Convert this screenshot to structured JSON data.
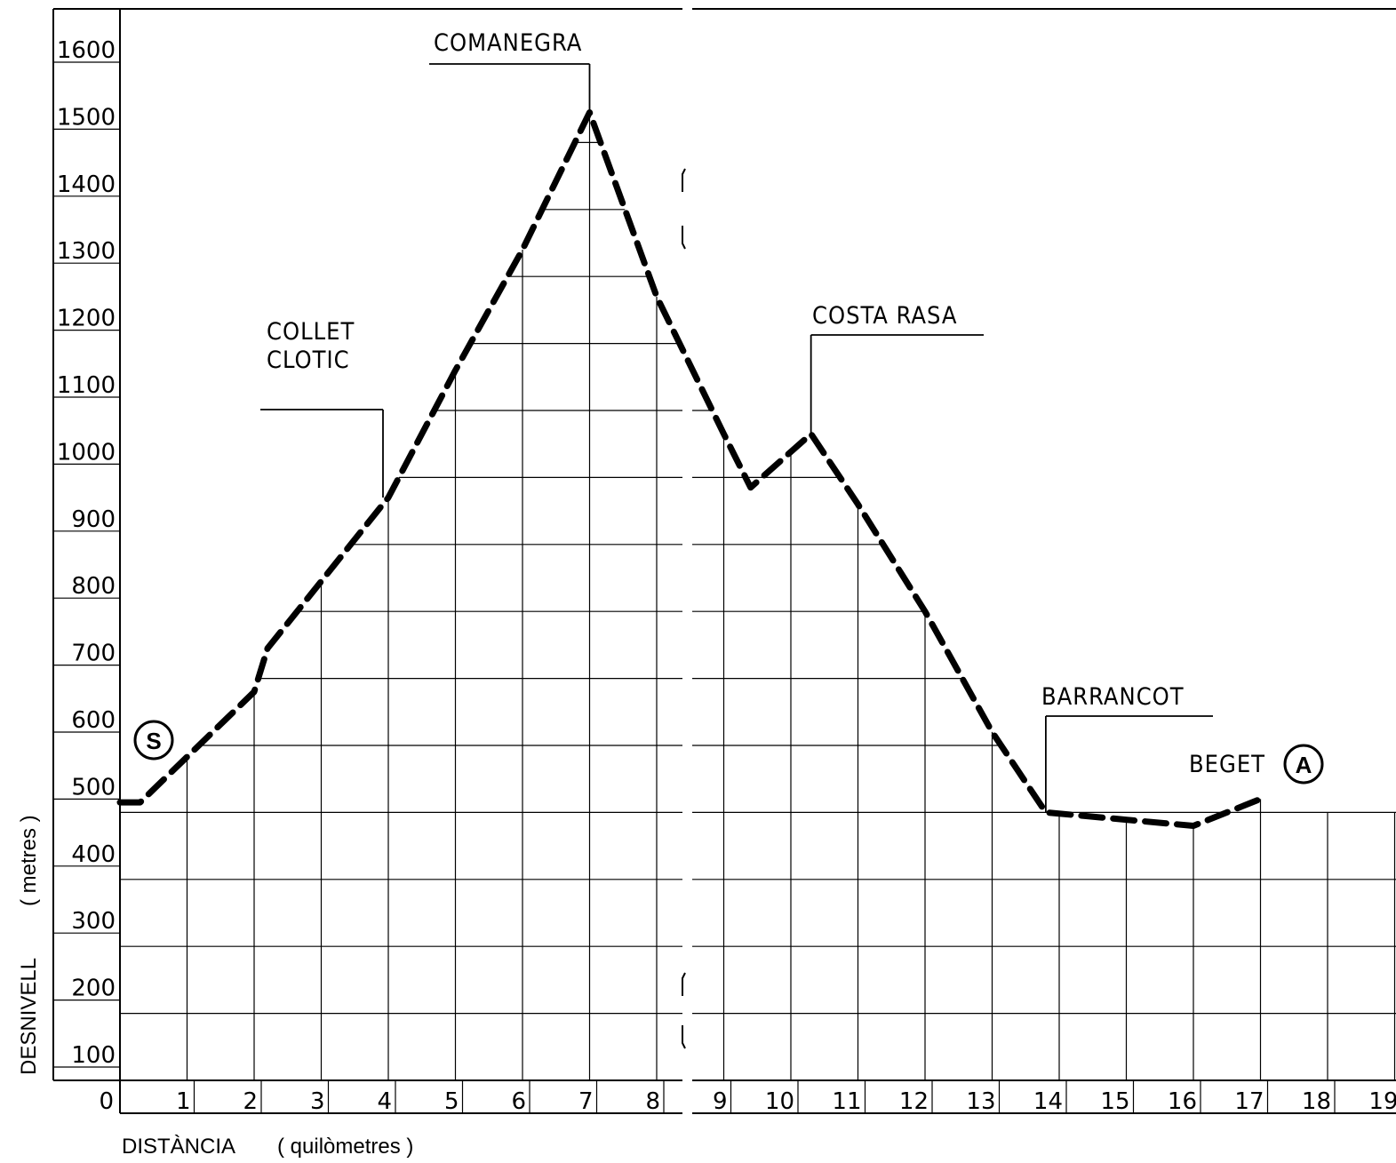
{
  "chart_data": {
    "type": "line",
    "xlabel": "DISTÀNCIA",
    "xunit": "( quilòmetres )",
    "ylabel": "DESNIVELL",
    "yunit": "( metres )",
    "xlim": [
      0,
      19
    ],
    "ylim": [
      100,
      1700
    ],
    "x_ticks": [
      0,
      1,
      2,
      3,
      4,
      5,
      6,
      7,
      8,
      9,
      10,
      11,
      12,
      13,
      14,
      15,
      16,
      17,
      18,
      19
    ],
    "y_ticks": [
      100,
      200,
      300,
      400,
      500,
      600,
      700,
      800,
      900,
      1000,
      1100,
      1200,
      1300,
      1400,
      1500,
      1600
    ],
    "grid": true,
    "series": [
      {
        "style": "dashed",
        "color": "#000000",
        "points": [
          {
            "x": 0,
            "y": 515
          },
          {
            "x": 0.3,
            "y": 515
          },
          {
            "x": 2,
            "y": 680
          },
          {
            "x": 2.2,
            "y": 745
          },
          {
            "x": 3,
            "y": 845
          },
          {
            "x": 4,
            "y": 970
          },
          {
            "x": 5,
            "y": 1160
          },
          {
            "x": 6,
            "y": 1340
          },
          {
            "x": 7,
            "y": 1545
          },
          {
            "x": 8,
            "y": 1270
          },
          {
            "x": 9,
            "y": 1065
          },
          {
            "x": 9.4,
            "y": 985
          },
          {
            "x": 10.3,
            "y": 1065
          },
          {
            "x": 11,
            "y": 960
          },
          {
            "x": 12,
            "y": 800
          },
          {
            "x": 13,
            "y": 620
          },
          {
            "x": 13.8,
            "y": 500
          },
          {
            "x": 16,
            "y": 480
          },
          {
            "x": 17,
            "y": 520
          }
        ]
      }
    ],
    "annotations": [
      {
        "lines": [
          "COMANEGRA"
        ],
        "x": 7,
        "y": 1545
      },
      {
        "lines": [
          "COLLET",
          "CLOTIC"
        ],
        "x": 4,
        "y": 970
      },
      {
        "lines": [
          "COSTA RASA"
        ],
        "x": 10.3,
        "y": 1065
      },
      {
        "lines": [
          "BARRANCOT"
        ],
        "x": 13.8,
        "y": 500
      },
      {
        "lines": [
          "BEGET"
        ],
        "x": 17,
        "y": 520
      }
    ],
    "markers": [
      {
        "text": "S"
      },
      {
        "text": "A"
      }
    ]
  }
}
